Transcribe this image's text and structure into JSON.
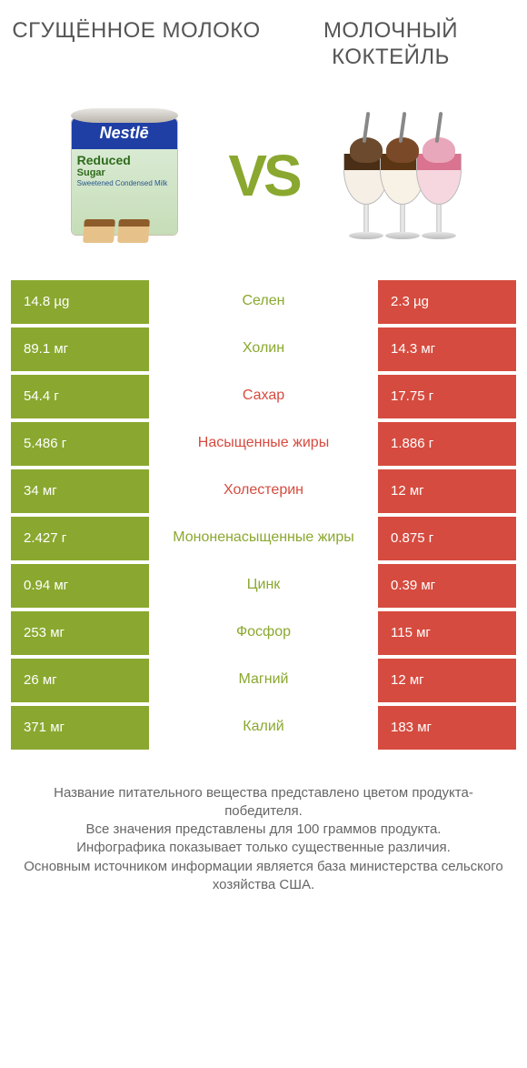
{
  "colors": {
    "left_bar": "#8aa82f",
    "right_bar": "#d64b3f",
    "label_left_win": "#8aa82f",
    "label_right_win": "#d64b3f",
    "vs": "#8aa82f",
    "title_text": "#555555",
    "footer_text": "#666666"
  },
  "header": {
    "left": "СГУЩЁННОЕ МОЛОКО",
    "right": "МОЛОЧНЫЙ КОКТЕЙЛЬ"
  },
  "vs_label": "VS",
  "can": {
    "brand": "Nestlē",
    "line1": "Reduced",
    "line2": "Sugar",
    "line3": "Sweetened Condensed Milk"
  },
  "shakes": [
    {
      "scoop": "#6b4a2e",
      "fill": "#f5efe6",
      "drip": "#4a2e16"
    },
    {
      "scoop": "#7a4a28",
      "fill": "#f8f2e6",
      "drip": "#5c3614"
    },
    {
      "scoop": "#e9a7bb",
      "fill": "#f6d7e0",
      "drip": "#d9738f"
    }
  ],
  "rows": [
    {
      "left": "14.8 µg",
      "label": "Селен",
      "right": "2.3 µg",
      "winner": "left"
    },
    {
      "left": "89.1 мг",
      "label": "Холин",
      "right": "14.3 мг",
      "winner": "left"
    },
    {
      "left": "54.4 г",
      "label": "Сахар",
      "right": "17.75 г",
      "winner": "right"
    },
    {
      "left": "5.486 г",
      "label": "Насыщенные жиры",
      "right": "1.886 г",
      "winner": "right"
    },
    {
      "left": "34 мг",
      "label": "Холестерин",
      "right": "12 мг",
      "winner": "right"
    },
    {
      "left": "2.427 г",
      "label": "Мононенасыщенные жиры",
      "right": "0.875 г",
      "winner": "left"
    },
    {
      "left": "0.94 мг",
      "label": "Цинк",
      "right": "0.39 мг",
      "winner": "left"
    },
    {
      "left": "253 мг",
      "label": "Фосфор",
      "right": "115 мг",
      "winner": "left"
    },
    {
      "left": "26 мг",
      "label": "Магний",
      "right": "12 мг",
      "winner": "left"
    },
    {
      "left": "371 мг",
      "label": "Калий",
      "right": "183 мг",
      "winner": "left"
    }
  ],
  "footer": {
    "l1": "Название питательного вещества представлено цветом продукта-победителя.",
    "l2": "Все значения представлены для 100 граммов продукта.",
    "l3": "Инфографика показывает только существенные различия.",
    "l4": "Основным источником информации является база министерства сельского хозяйства США."
  }
}
